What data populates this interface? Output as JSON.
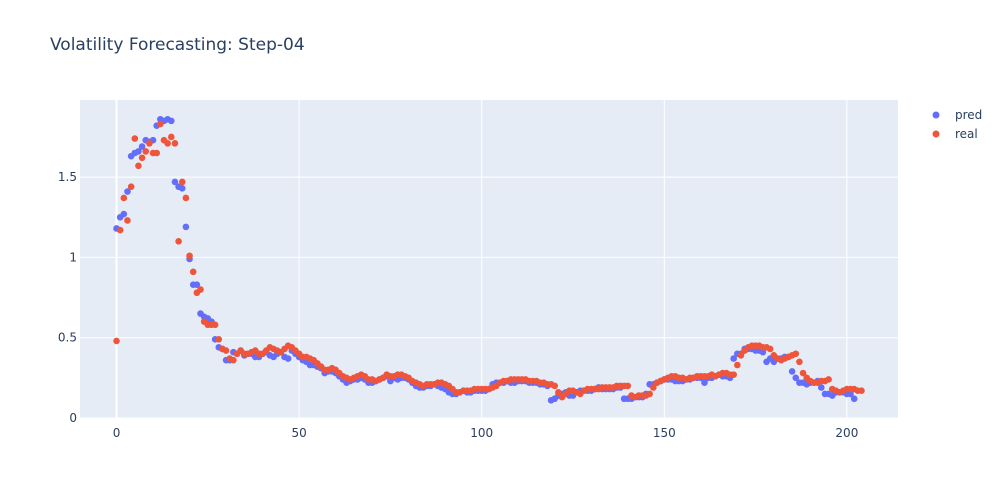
{
  "chart_data": {
    "type": "scatter",
    "title": "Volatility Forecasting: Step-04",
    "xlabel": "",
    "ylabel": "",
    "xlim": [
      -10,
      214
    ],
    "ylim": [
      0,
      1.98
    ],
    "x_ticks": [
      0,
      50,
      100,
      150,
      200
    ],
    "y_ticks": [
      0,
      0.5,
      1,
      1.5
    ],
    "x_tick_labels": [
      "0",
      "50",
      "100",
      "150",
      "200"
    ],
    "y_tick_labels": [
      "0",
      "0.5",
      "1",
      "1.5"
    ],
    "grid": true,
    "legend_position": "top-right",
    "series": [
      {
        "name": "pred",
        "color": "#636efa",
        "y": [
          1.18,
          1.25,
          1.27,
          1.41,
          1.63,
          1.65,
          1.66,
          1.69,
          1.73,
          1.72,
          1.73,
          1.82,
          1.86,
          1.85,
          1.86,
          1.85,
          1.47,
          1.44,
          1.43,
          1.19,
          0.99,
          0.83,
          0.83,
          0.65,
          0.63,
          0.62,
          0.6,
          0.49,
          0.44,
          0.43,
          0.36,
          0.36,
          0.41,
          0.4,
          0.42,
          0.39,
          0.4,
          0.4,
          0.38,
          0.38,
          0.4,
          0.41,
          0.39,
          0.38,
          0.4,
          0.41,
          0.38,
          0.37,
          0.42,
          0.4,
          0.38,
          0.36,
          0.35,
          0.33,
          0.33,
          0.32,
          0.31,
          0.28,
          0.29,
          0.29,
          0.28,
          0.26,
          0.24,
          0.22,
          0.23,
          0.24,
          0.24,
          0.25,
          0.24,
          0.22,
          0.22,
          0.23,
          0.24,
          0.25,
          0.26,
          0.23,
          0.25,
          0.24,
          0.25,
          0.25,
          0.24,
          0.22,
          0.2,
          0.19,
          0.19,
          0.2,
          0.2,
          0.21,
          0.2,
          0.19,
          0.18,
          0.16,
          0.15,
          0.15,
          0.16,
          0.17,
          0.16,
          0.16,
          0.17,
          0.17,
          0.17,
          0.17,
          0.18,
          0.21,
          0.22,
          0.22,
          0.22,
          0.23,
          0.22,
          0.22,
          0.23,
          0.23,
          0.23,
          0.22,
          0.22,
          0.22,
          0.21,
          0.21,
          0.2,
          0.11,
          0.12,
          0.14,
          0.15,
          0.16,
          0.14,
          0.14,
          0.16,
          0.17,
          0.17,
          0.17,
          0.17,
          0.18,
          0.19,
          0.18,
          0.18,
          0.18,
          0.18,
          0.19,
          0.19,
          0.12,
          0.12,
          0.12,
          0.13,
          0.13,
          0.13,
          0.15,
          0.21,
          0.21,
          0.22,
          0.23,
          0.24,
          0.24,
          0.24,
          0.23,
          0.23,
          0.23,
          0.24,
          0.24,
          0.25,
          0.25,
          0.25,
          0.22,
          0.25,
          0.25,
          0.26,
          0.27,
          0.26,
          0.26,
          0.25,
          0.37,
          0.4,
          0.4,
          0.43,
          0.43,
          0.43,
          0.42,
          0.42,
          0.41,
          0.35,
          0.37,
          0.35,
          0.37,
          0.37,
          0.38,
          0.38,
          0.29,
          0.25,
          0.22,
          0.22,
          0.21,
          0.22,
          0.22,
          0.23,
          0.19,
          0.15,
          0.15,
          0.14,
          0.16,
          0.16,
          0.16,
          0.15,
          0.15,
          0.12
        ]
      },
      {
        "name": "real",
        "color": "#ef553b",
        "y": [
          0.48,
          1.17,
          1.37,
          1.23,
          1.44,
          1.74,
          1.57,
          1.62,
          1.66,
          1.71,
          1.65,
          1.65,
          1.83,
          1.73,
          1.71,
          1.75,
          1.71,
          1.1,
          1.47,
          1.37,
          1.01,
          0.91,
          0.78,
          0.8,
          0.6,
          0.58,
          0.58,
          0.58,
          0.49,
          0.43,
          0.42,
          0.37,
          0.36,
          0.4,
          0.42,
          0.4,
          0.4,
          0.41,
          0.42,
          0.4,
          0.4,
          0.42,
          0.44,
          0.43,
          0.42,
          0.41,
          0.43,
          0.45,
          0.44,
          0.42,
          0.4,
          0.38,
          0.38,
          0.37,
          0.36,
          0.34,
          0.32,
          0.3,
          0.3,
          0.31,
          0.3,
          0.28,
          0.26,
          0.25,
          0.24,
          0.25,
          0.26,
          0.27,
          0.26,
          0.24,
          0.24,
          0.23,
          0.24,
          0.25,
          0.27,
          0.26,
          0.26,
          0.27,
          0.27,
          0.26,
          0.25,
          0.23,
          0.22,
          0.21,
          0.2,
          0.21,
          0.21,
          0.21,
          0.22,
          0.22,
          0.21,
          0.2,
          0.18,
          0.16,
          0.16,
          0.17,
          0.17,
          0.17,
          0.18,
          0.18,
          0.18,
          0.18,
          0.18,
          0.19,
          0.2,
          0.22,
          0.23,
          0.23,
          0.24,
          0.24,
          0.24,
          0.24,
          0.24,
          0.23,
          0.23,
          0.23,
          0.22,
          0.22,
          0.21,
          0.21,
          0.2,
          0.16,
          0.13,
          0.15,
          0.17,
          0.17,
          0.16,
          0.15,
          0.17,
          0.18,
          0.18,
          0.18,
          0.18,
          0.19,
          0.19,
          0.19,
          0.19,
          0.2,
          0.2,
          0.2,
          0.2,
          0.14,
          0.13,
          0.14,
          0.14,
          0.14,
          0.15,
          0.19,
          0.22,
          0.23,
          0.24,
          0.25,
          0.26,
          0.26,
          0.25,
          0.25,
          0.24,
          0.25,
          0.25,
          0.26,
          0.26,
          0.26,
          0.26,
          0.27,
          0.26,
          0.27,
          0.28,
          0.28,
          0.27,
          0.27,
          0.33,
          0.39,
          0.42,
          0.44,
          0.45,
          0.45,
          0.45,
          0.44,
          0.44,
          0.43,
          0.39,
          0.37,
          0.36,
          0.37,
          0.38,
          0.39,
          0.4,
          0.35,
          0.28,
          0.25,
          0.23,
          0.22,
          0.22,
          0.23,
          0.23,
          0.24,
          0.18,
          0.17,
          0.16,
          0.17,
          0.18,
          0.18,
          0.18,
          0.17,
          0.17
        ]
      }
    ]
  }
}
